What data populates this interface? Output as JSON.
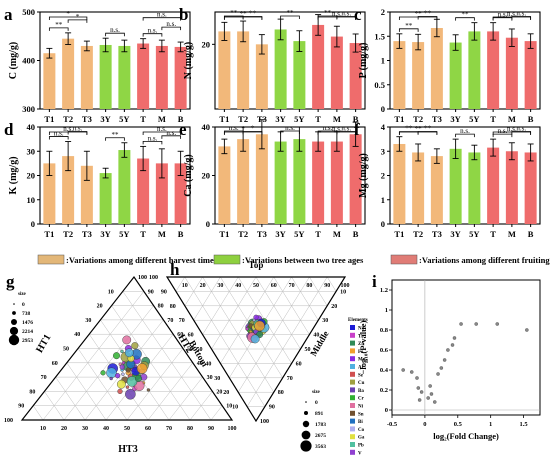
{
  "chart_data": [
    {
      "panel": "a",
      "type": "bar",
      "ylabel": "C (mg/g)",
      "ylim": [
        300,
        500
      ],
      "yticks": [
        300,
        400,
        500
      ],
      "categories": [
        "T1",
        "T2",
        "T3",
        "3Y",
        "5Y",
        "T",
        "M",
        "B"
      ],
      "values": [
        415,
        445,
        430,
        432,
        430,
        435,
        430,
        428
      ],
      "errors": [
        10,
        12,
        10,
        14,
        12,
        10,
        12,
        10
      ],
      "sig": [
        {
          "a": 0,
          "b": 1,
          "label": "**",
          "level": 0
        },
        {
          "a": 1,
          "b": 2,
          "label": "*",
          "level": 1
        },
        {
          "a": 0,
          "b": 2,
          "label": "*",
          "level": 2
        },
        {
          "a": 3,
          "b": 4,
          "label": "n.s.",
          "level": 0
        },
        {
          "a": 5,
          "b": 6,
          "label": "n.s.",
          "level": 0
        },
        {
          "a": 6,
          "b": 7,
          "label": "n.s.",
          "level": 1
        },
        {
          "a": 5,
          "b": 7,
          "label": "n.s.",
          "level": 2
        }
      ]
    },
    {
      "panel": "b",
      "type": "bar",
      "ylabel": "N (mg/g)",
      "ylim": [
        10,
        25
      ],
      "yticks": [
        20
      ],
      "categories": [
        "T1",
        "T2",
        "T3",
        "3Y",
        "5Y",
        "T",
        "M",
        "B"
      ],
      "values": [
        22,
        22,
        20,
        22.3,
        20.5,
        23,
        21.2,
        20.2
      ],
      "errors": [
        1.4,
        1.6,
        1.5,
        1.6,
        1.6,
        1.6,
        1.6,
        1.4
      ],
      "sig": [
        {
          "a": 0,
          "b": 1,
          "label": "**",
          "level": 0
        },
        {
          "a": 1,
          "b": 2,
          "label": "**",
          "level": 1
        },
        {
          "a": 0,
          "b": 2,
          "label": "**",
          "level": 2
        },
        {
          "a": 3,
          "b": 4,
          "label": "**",
          "level": 0
        },
        {
          "a": 5,
          "b": 6,
          "label": "**",
          "level": 0
        },
        {
          "a": 6,
          "b": 7,
          "label": "n.s.",
          "level": 1
        },
        {
          "a": 5,
          "b": 7,
          "label": "n.s.",
          "level": 2
        }
      ]
    },
    {
      "panel": "c",
      "type": "bar",
      "ylabel": "P (mg/g)",
      "ylim": [
        0,
        2
      ],
      "yticks": [
        0,
        0.5,
        1.0,
        1.5,
        2.0
      ],
      "categories": [
        "T1",
        "T2",
        "T3",
        "3Y",
        "5Y",
        "T",
        "M",
        "B"
      ],
      "values": [
        1.4,
        1.38,
        1.67,
        1.37,
        1.6,
        1.6,
        1.47,
        1.4
      ],
      "errors": [
        0.15,
        0.16,
        0.18,
        0.16,
        0.18,
        0.18,
        0.18,
        0.15
      ],
      "sig": [
        {
          "a": 0,
          "b": 1,
          "label": "**",
          "level": 0
        },
        {
          "a": 1,
          "b": 2,
          "label": "**",
          "level": 1
        },
        {
          "a": 0,
          "b": 2,
          "label": "**",
          "level": 2
        },
        {
          "a": 3,
          "b": 4,
          "label": "**",
          "level": 0
        },
        {
          "a": 5,
          "b": 6,
          "label": "n.s.",
          "level": 0
        },
        {
          "a": 6,
          "b": 7,
          "label": "n.s.",
          "level": 1
        },
        {
          "a": 5,
          "b": 7,
          "label": "n.s.",
          "level": 2
        }
      ]
    },
    {
      "panel": "d",
      "type": "bar",
      "ylabel": "K (mg/g)",
      "ylim": [
        0,
        40
      ],
      "yticks": [
        0,
        10,
        20,
        30,
        40
      ],
      "categories": [
        "T1",
        "T2",
        "T3",
        "3Y",
        "5Y",
        "T",
        "M",
        "B"
      ],
      "values": [
        25,
        28,
        24,
        21,
        30.5,
        27,
        25,
        25
      ],
      "errors": [
        5,
        6,
        6,
        2,
        3,
        5,
        6,
        5
      ],
      "sig": [
        {
          "a": 0,
          "b": 1,
          "label": "n.s.",
          "level": 0
        },
        {
          "a": 1,
          "b": 2,
          "label": "n.s.",
          "level": 1
        },
        {
          "a": 0,
          "b": 2,
          "label": "n.s.",
          "level": 2
        },
        {
          "a": 3,
          "b": 4,
          "label": "**",
          "level": 0
        },
        {
          "a": 5,
          "b": 6,
          "label": "n.s.",
          "level": 0
        },
        {
          "a": 6,
          "b": 7,
          "label": "n.s.",
          "level": 1
        },
        {
          "a": 5,
          "b": 7,
          "label": "n.s.",
          "level": 2
        }
      ]
    },
    {
      "panel": "e",
      "type": "bar",
      "ylabel": "Ca (mg/g)",
      "ylim": [
        0,
        40
      ],
      "yticks": [
        0,
        20,
        40
      ],
      "categories": [
        "T1",
        "T2",
        "T3",
        "3Y",
        "5Y",
        "T",
        "M",
        "B"
      ],
      "values": [
        32,
        35,
        37,
        34,
        35,
        34,
        34,
        37
      ],
      "errors": [
        3,
        5,
        6,
        4,
        5,
        4,
        4,
        5
      ],
      "sig": [
        {
          "a": 0,
          "b": 1,
          "label": "n.s.",
          "level": 0
        },
        {
          "a": 1,
          "b": 2,
          "label": "*",
          "level": 1
        },
        {
          "a": 0,
          "b": 2,
          "label": "*",
          "level": 2
        },
        {
          "a": 3,
          "b": 4,
          "label": "n.s.",
          "level": 0
        },
        {
          "a": 5,
          "b": 6,
          "label": "n.s.",
          "level": 0
        },
        {
          "a": 6,
          "b": 7,
          "label": "n.s.",
          "level": 1
        },
        {
          "a": 5,
          "b": 7,
          "label": "n.s.",
          "level": 2
        }
      ]
    },
    {
      "panel": "f",
      "type": "bar",
      "ylabel": "Mg (mg/g)",
      "ylim": [
        0,
        4
      ],
      "yticks": [
        0,
        1,
        2,
        3,
        4
      ],
      "categories": [
        "T1",
        "T2",
        "T3",
        "3Y",
        "5Y",
        "T",
        "M",
        "B"
      ],
      "values": [
        3.3,
        2.95,
        2.8,
        3.1,
        2.95,
        3.15,
        3.0,
        2.95
      ],
      "errors": [
        0.3,
        0.35,
        0.3,
        0.4,
        0.3,
        0.35,
        0.35,
        0.35
      ],
      "sig": [
        {
          "a": 0,
          "b": 1,
          "label": "**",
          "level": 0
        },
        {
          "a": 1,
          "b": 2,
          "label": "**",
          "level": 1
        },
        {
          "a": 0,
          "b": 2,
          "label": "**",
          "level": 2
        },
        {
          "a": 3,
          "b": 4,
          "label": "n.s.",
          "level": 0
        },
        {
          "a": 5,
          "b": 6,
          "label": "n.s.",
          "level": 0
        },
        {
          "a": 6,
          "b": 7,
          "label": "n.s.",
          "level": 1
        },
        {
          "a": 5,
          "b": 7,
          "label": "n.s.",
          "level": 2
        }
      ]
    },
    {
      "panel": "g",
      "type": "scatter",
      "subtype": "ternary",
      "axis_labels": [
        "HT1",
        "HT2",
        "HT3"
      ],
      "ticks": [
        10,
        20,
        30,
        40,
        50,
        60,
        70,
        80,
        90,
        100
      ],
      "size_legend_title": "size",
      "size_legend": [
        0,
        738,
        1476,
        2214,
        2953
      ],
      "points": [
        [
          0.4,
          0.28,
          0.32
        ],
        [
          0.36,
          0.3,
          0.34
        ],
        [
          0.38,
          0.32,
          0.3
        ],
        [
          0.33,
          0.34,
          0.33
        ],
        [
          0.42,
          0.26,
          0.32
        ],
        [
          0.35,
          0.36,
          0.29
        ],
        [
          0.3,
          0.34,
          0.36
        ],
        [
          0.44,
          0.3,
          0.26
        ],
        [
          0.37,
          0.29,
          0.34
        ],
        [
          0.31,
          0.31,
          0.38
        ],
        [
          0.39,
          0.35,
          0.26
        ],
        [
          0.28,
          0.38,
          0.34
        ],
        [
          0.46,
          0.24,
          0.3
        ],
        [
          0.34,
          0.27,
          0.39
        ],
        [
          0.25,
          0.41,
          0.34
        ],
        [
          0.48,
          0.3,
          0.22
        ],
        [
          0.3,
          0.28,
          0.42
        ],
        [
          0.36,
          0.4,
          0.24
        ],
        [
          0.22,
          0.36,
          0.42
        ],
        [
          0.41,
          0.22,
          0.37
        ],
        [
          0.26,
          0.3,
          0.44
        ],
        [
          0.5,
          0.26,
          0.24
        ],
        [
          0.33,
          0.42,
          0.25
        ],
        [
          0.2,
          0.44,
          0.36
        ],
        [
          0.38,
          0.24,
          0.38
        ],
        [
          0.29,
          0.44,
          0.27
        ],
        [
          0.45,
          0.34,
          0.21
        ],
        [
          0.24,
          0.33,
          0.43
        ],
        [
          0.35,
          0.33,
          0.32
        ],
        [
          0.39,
          0.3,
          0.31
        ],
        [
          0.32,
          0.37,
          0.31
        ],
        [
          0.43,
          0.28,
          0.29
        ],
        [
          0.27,
          0.35,
          0.38
        ],
        [
          0.37,
          0.35,
          0.28
        ],
        [
          0.34,
          0.3,
          0.36
        ],
        [
          0.4,
          0.33,
          0.27
        ],
        [
          0.29,
          0.31,
          0.4
        ],
        [
          0.36,
          0.26,
          0.38
        ],
        [
          0.31,
          0.4,
          0.29
        ],
        [
          0.47,
          0.27,
          0.26
        ],
        [
          0.23,
          0.39,
          0.38
        ],
        [
          0.52,
          0.22,
          0.26
        ],
        [
          0.18,
          0.4,
          0.42
        ],
        [
          0.33,
          0.46,
          0.21
        ],
        [
          0.56,
          0.24,
          0.2
        ],
        [
          0.21,
          0.3,
          0.49
        ]
      ]
    },
    {
      "panel": "h",
      "type": "scatter",
      "subtype": "ternary",
      "axis_labels": [
        "Top",
        "Middle",
        "Bottom"
      ],
      "ticks": [
        10,
        20,
        30,
        40,
        50,
        60,
        70,
        80,
        90,
        100
      ],
      "size_legend_title": "size",
      "size_legend": [
        0,
        891,
        1783,
        2675,
        3563
      ],
      "color_legend_title": "Elements",
      "elements": [
        "Na",
        "Ti",
        "Zn",
        "Fe",
        "Mn",
        "Al",
        "Se",
        "Cu",
        "Ba",
        "Cr",
        "Ni",
        "Sn",
        "Bi",
        "Co",
        "Ga",
        "Pb",
        "V"
      ],
      "points": [
        [
          0.36,
          0.32,
          0.32
        ],
        [
          0.34,
          0.34,
          0.32
        ],
        [
          0.38,
          0.3,
          0.32
        ],
        [
          0.33,
          0.31,
          0.36
        ],
        [
          0.35,
          0.36,
          0.29
        ],
        [
          0.37,
          0.33,
          0.3
        ],
        [
          0.32,
          0.33,
          0.35
        ],
        [
          0.39,
          0.32,
          0.29
        ],
        [
          0.34,
          0.29,
          0.37
        ],
        [
          0.36,
          0.35,
          0.29
        ],
        [
          0.31,
          0.35,
          0.34
        ],
        [
          0.4,
          0.3,
          0.3
        ],
        [
          0.35,
          0.31,
          0.34
        ],
        [
          0.33,
          0.37,
          0.3
        ],
        [
          0.37,
          0.28,
          0.35
        ],
        [
          0.3,
          0.32,
          0.38
        ],
        [
          0.41,
          0.33,
          0.26
        ],
        [
          0.34,
          0.33,
          0.33
        ],
        [
          0.36,
          0.3,
          0.34
        ],
        [
          0.32,
          0.36,
          0.32
        ],
        [
          0.38,
          0.34,
          0.28
        ],
        [
          0.29,
          0.34,
          0.37
        ],
        [
          0.35,
          0.28,
          0.37
        ],
        [
          0.39,
          0.29,
          0.32
        ],
        [
          0.33,
          0.35,
          0.32
        ],
        [
          0.36,
          0.34,
          0.3
        ],
        [
          0.31,
          0.3,
          0.39
        ],
        [
          0.42,
          0.31,
          0.27
        ],
        [
          0.34,
          0.36,
          0.3
        ],
        [
          0.37,
          0.31,
          0.32
        ],
        [
          0.3,
          0.36,
          0.34
        ],
        [
          0.35,
          0.33,
          0.32
        ],
        [
          0.33,
          0.32,
          0.35
        ],
        [
          0.38,
          0.31,
          0.31
        ],
        [
          0.32,
          0.31,
          0.37
        ],
        [
          0.36,
          0.37,
          0.27
        ],
        [
          0.4,
          0.28,
          0.32
        ],
        [
          0.34,
          0.31,
          0.35
        ],
        [
          0.28,
          0.36,
          0.36
        ],
        [
          0.43,
          0.29,
          0.28
        ]
      ]
    },
    {
      "panel": "i",
      "type": "scatter",
      "xlabel": "log₂(Fold Change)",
      "ylabel": "−log₁₀(P-value)",
      "xlim": [
        -0.5,
        1.75
      ],
      "ylim": [
        -0.05,
        1.3
      ],
      "xticks": [
        -0.5,
        0,
        0.5,
        1,
        1.5
      ],
      "yticks": [
        0,
        0.2,
        0.4,
        0.6,
        0.8,
        1.0,
        1.2
      ],
      "x": [
        -0.33,
        -0.2,
        -0.12,
        -0.1,
        -0.05,
        0.05,
        0.1,
        0.15,
        0.2,
        0.25,
        0.3,
        0.35,
        0.42,
        0.45,
        0.55,
        0.78,
        1.1,
        1.55,
        -0.08,
        0.08
      ],
      "y": [
        0.4,
        0.38,
        0.32,
        0.22,
        0.18,
        0.12,
        0.16,
        0.08,
        0.36,
        0.42,
        0.5,
        0.6,
        0.65,
        0.72,
        0.86,
        0.86,
        0.86,
        0.8,
        0.1,
        0.24
      ],
      "vline": 0,
      "hline": 0
    }
  ],
  "legend": {
    "items": [
      {
        "label": ":Variations among different harvest times",
        "color": "#e3b778"
      },
      {
        "label": ":Variations between two tree ages",
        "color": "#8ed03f"
      },
      {
        "label": ":Variations among different fruiting positions",
        "color": "#e07c76"
      }
    ]
  },
  "bar_colors": [
    "#f2b87a",
    "#f2b87a",
    "#f2b87a",
    "#8fd645",
    "#8fd645",
    "#ef6c6c",
    "#ef6c6c",
    "#ef6c6c"
  ],
  "dot_colors": [
    "#1b1bd6",
    "#c83fc8",
    "#2e8b57",
    "#f0a030",
    "#8a2be2",
    "#4fb0e0",
    "#d05050",
    "#a0a040",
    "#6a3fb0",
    "#30b030",
    "#e070a0",
    "#705030",
    "#2070c0",
    "#b0b0f0",
    "#e0e040",
    "#50c0a0",
    "#9040d0"
  ]
}
